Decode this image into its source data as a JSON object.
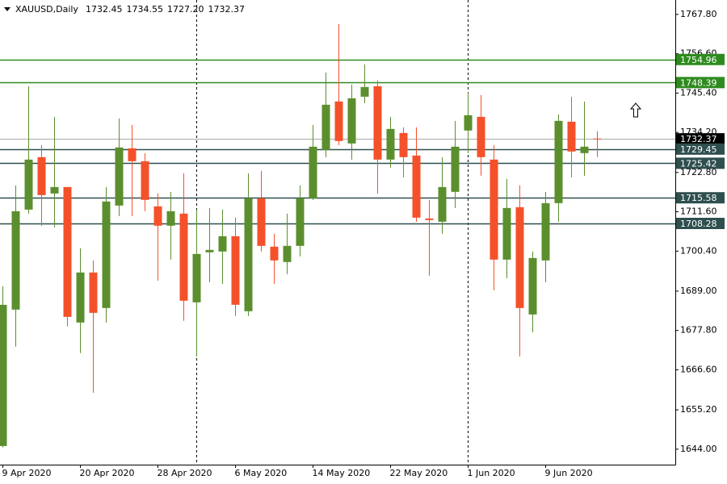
{
  "chart_data": {
    "type": "candlestick",
    "title": "XAUUSD,Daily",
    "header_values": [
      1732.45,
      1734.55,
      {
        "value": 1727.2,
        "label": "1727.20"
      },
      1732.37
    ],
    "categories": [
      "9 Apr 2020",
      null,
      null,
      null,
      null,
      null,
      "20 Apr 2020",
      null,
      null,
      null,
      null,
      null,
      "28 Apr 2020",
      null,
      null,
      null,
      null,
      null,
      "6 May 2020",
      null,
      null,
      null,
      null,
      null,
      "14 May 2020",
      null,
      null,
      null,
      null,
      null,
      "22 May 2020",
      null,
      null,
      null,
      null,
      null,
      "1 Jun 2020",
      null,
      null,
      null,
      null,
      null,
      "9 Jun 2020",
      null,
      null,
      null,
      null
    ],
    "open": [
      1644.9,
      1683.74,
      1712.22,
      1727.15,
      1716.81,
      1718.65,
      1680.07,
      1694.31,
      1684.2,
      1713.37,
      1729.67,
      1726.0,
      1713.14,
      1707.63,
      1711.07,
      1685.81,
      1700.05,
      1700.28,
      1704.64,
      1683.28,
      1715.44,
      1701.66,
      1697.29,
      1701.89,
      1715.44,
      1729.22,
      1743.0,
      1731.05,
      1744.37,
      1747.36,
      1726.46,
      1734.04,
      1727.61,
      1709.69,
      1708.77,
      1717.27,
      1734.73,
      1738.63,
      1726.46,
      1697.98,
      1712.91,
      1682.36,
      1697.75,
      1714.06,
      1737.25,
      1728.3,
      1732.45
    ],
    "high": [
      1690.4,
      1719.11,
      1747.36,
      1730.59,
      1738.63,
      1718.65,
      1701.2,
      1697.75,
      1718.65,
      1738.17,
      1736.34,
      1728.3,
      1716.81,
      1717.27,
      1722.56,
      1712.22,
      1712.68,
      1712.22,
      1709.92,
      1722.56,
      1723.24,
      1705.33,
      1711.07,
      1719.11,
      1736.34,
      1751.26,
      1765.04,
      1747.82,
      1753.56,
      1748.97,
      1738.63,
      1735.65,
      1735.65,
      1714.98,
      1727.15,
      1737.48,
      1745.52,
      1744.83,
      1730.59,
      1720.95,
      1719.11,
      1700.28,
      1717.27,
      1739.32,
      1744.37,
      1743.0,
      1734.55
    ],
    "low": [
      1644.5,
      1673.18,
      1711.07,
      1707.63,
      1707.17,
      1678.92,
      1671.34,
      1660.08,
      1680.07,
      1710.38,
      1710.38,
      1711.76,
      1692.01,
      1697.98,
      1680.53,
      1670.42,
      1691.55,
      1691.09,
      1681.9,
      1681.9,
      1700.28,
      1691.09,
      1693.85,
      1698.9,
      1714.98,
      1727.15,
      1730.59,
      1726.46,
      1742.54,
      1716.81,
      1724.16,
      1721.41,
      1708.77,
      1693.39,
      1705.33,
      1712.68,
      1728.3,
      1721.87,
      1689.25,
      1692.7,
      1670.42,
      1677.31,
      1691.55,
      1708.77,
      1721.41,
      1721.87,
      1727.2
    ],
    "close": [
      1685.1,
      1711.76,
      1726.46,
      1716.35,
      1718.65,
      1681.67,
      1694.31,
      1682.82,
      1714.52,
      1729.9,
      1726.0,
      1714.98,
      1707.63,
      1711.76,
      1686.27,
      1699.59,
      1700.74,
      1704.64,
      1685.12,
      1715.44,
      1701.89,
      1697.75,
      1701.89,
      1715.44,
      1730.13,
      1742.08,
      1731.74,
      1743.91,
      1747.13,
      1726.46,
      1735.19,
      1727.15,
      1709.92,
      1709.23,
      1718.65,
      1730.13,
      1739.09,
      1727.15,
      1697.98,
      1712.68,
      1684.2,
      1698.44,
      1714.06,
      1737.48,
      1728.76,
      1730.13,
      1732.37
    ],
    "up_color": "#5b8f2e",
    "down_color": "#f4512b",
    "levels": [
      {
        "value": 1754.96,
        "color": "#2e8b1e"
      },
      {
        "value": 1748.39,
        "color": "#2e8b1e"
      },
      {
        "value": 1732.37,
        "color": "#000000"
      },
      {
        "value": 1729.45,
        "color": "#2f4f4f"
      },
      {
        "value": 1725.42,
        "color": "#2f4f4f"
      },
      {
        "value": 1715.58,
        "color": "#2f4f4f"
      },
      {
        "value": 1708.28,
        "color": "#2f4f4f"
      }
    ],
    "ylim": [
      1639.6,
      1771.9
    ],
    "yticks": [
      {
        "value": 1767.8,
        "label": "1767.80"
      },
      {
        "value": 1756.6,
        "label": "1756.60"
      },
      {
        "value": 1745.4,
        "label": "1745.40"
      },
      {
        "value": 1734.2,
        "label": "1734.20"
      },
      {
        "value": 1722.8,
        "label": "1722.80"
      },
      {
        "value": 1711.6,
        "label": "1711.60"
      },
      {
        "value": 1700.4,
        "label": "1700.40"
      },
      {
        "value": 1689,
        "label": "1689.00"
      },
      {
        "value": 1677.8,
        "label": "1677.80"
      },
      {
        "value": 1666.6,
        "label": "1666.60"
      },
      {
        "value": 1655.2,
        "label": "1655.20"
      },
      {
        "value": 1644,
        "label": "1644.00"
      }
    ],
    "grid": false
  }
}
